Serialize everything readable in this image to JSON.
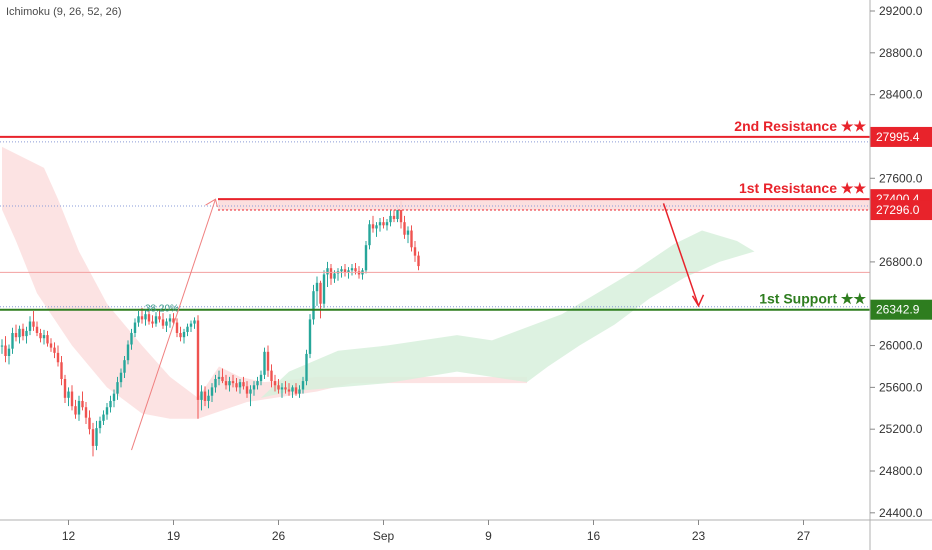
{
  "indicator": {
    "label": "Ichimoku (9, 26, 52, 26)"
  },
  "chart_data": {
    "type": "candlestick",
    "y_ticks": [
      "29200.0",
      "28800.0",
      "28400.0",
      "27600.0",
      "26800.0",
      "26000.0",
      "25600.0",
      "25200.0",
      "24800.0",
      "24400.0"
    ],
    "ylim": [
      24400,
      29350
    ],
    "x_ticks": [
      {
        "label": "12",
        "bar": 19
      },
      {
        "label": "19",
        "bar": 49
      },
      {
        "label": "26",
        "bar": 79
      },
      {
        "label": "Sep",
        "bar": 109
      },
      {
        "label": "9",
        "bar": 139
      },
      {
        "label": "16",
        "bar": 169
      },
      {
        "label": "23",
        "bar": 199
      },
      {
        "label": "27",
        "bar": 229
      }
    ],
    "levels": [
      {
        "label": "2nd Resistance ★★",
        "value": 27995.4,
        "tag": "27995.4",
        "color": "#e8232b"
      },
      {
        "label": "1st Resistance ★★",
        "value": 27400.4,
        "tag": "27400.4",
        "color": "#e8232b"
      },
      {
        "label": "",
        "value": 27296.0,
        "tag": "27296.0",
        "color": "#e8232b"
      },
      {
        "label": "1st Support ★★",
        "value": 26342.9,
        "tag": "26342.9",
        "color": "#2e7d1f"
      }
    ],
    "fib_label": "38.20%",
    "colors": {
      "up": "#26a69a",
      "down": "#ef5350",
      "resistance": "#e8232b",
      "support": "#2e7d1f",
      "cloud_bull": "#d7f0dc",
      "cloud_bear": "#fbdcdc"
    },
    "candles": [
      [
        25990,
        26060,
        25920,
        26000
      ],
      [
        26000,
        26090,
        25840,
        25900
      ],
      [
        25900,
        26010,
        25820,
        25970
      ],
      [
        25970,
        26170,
        25920,
        26120
      ],
      [
        26120,
        26200,
        26040,
        26080
      ],
      [
        26080,
        26190,
        26020,
        26160
      ],
      [
        26160,
        26210,
        26050,
        26090
      ],
      [
        26090,
        26180,
        26020,
        26140
      ],
      [
        26140,
        26280,
        26100,
        26230
      ],
      [
        26230,
        26330,
        26140,
        26180
      ],
      [
        26180,
        26230,
        26090,
        26120
      ],
      [
        26120,
        26160,
        26030,
        26070
      ],
      [
        26070,
        26150,
        26010,
        26100
      ],
      [
        26100,
        26140,
        25990,
        26020
      ],
      [
        26020,
        26070,
        25940,
        25980
      ],
      [
        25980,
        26030,
        25880,
        25930
      ],
      [
        25930,
        26000,
        25800,
        25840
      ],
      [
        25840,
        25900,
        25620,
        25680
      ],
      [
        25680,
        25720,
        25450,
        25500
      ],
      [
        25500,
        25600,
        25420,
        25560
      ],
      [
        25560,
        25620,
        25380,
        25420
      ],
      [
        25420,
        25480,
        25300,
        25340
      ],
      [
        25340,
        25520,
        25280,
        25470
      ],
      [
        25470,
        25560,
        25380,
        25410
      ],
      [
        25410,
        25460,
        25250,
        25310
      ],
      [
        25310,
        25380,
        25150,
        25200
      ],
      [
        25200,
        25260,
        24940,
        25040
      ],
      [
        25040,
        25280,
        25000,
        25210
      ],
      [
        25210,
        25320,
        25160,
        25280
      ],
      [
        25280,
        25380,
        25240,
        25340
      ],
      [
        25340,
        25450,
        25290,
        25410
      ],
      [
        25410,
        25520,
        25360,
        25470
      ],
      [
        25470,
        25580,
        25410,
        25540
      ],
      [
        25540,
        25700,
        25480,
        25650
      ],
      [
        25650,
        25780,
        25600,
        25740
      ],
      [
        25740,
        25900,
        25690,
        25860
      ],
      [
        25860,
        26050,
        25820,
        26010
      ],
      [
        26010,
        26160,
        25960,
        26120
      ],
      [
        26120,
        26260,
        26080,
        26220
      ],
      [
        26220,
        26330,
        26180,
        26280
      ],
      [
        26280,
        26360,
        26210,
        26250
      ],
      [
        26250,
        26340,
        26190,
        26300
      ],
      [
        26300,
        26350,
        26200,
        26230
      ],
      [
        26230,
        26290,
        26170,
        26210
      ],
      [
        26210,
        26320,
        26180,
        26280
      ],
      [
        26280,
        26340,
        26220,
        26250
      ],
      [
        26250,
        26310,
        26160,
        26190
      ],
      [
        26190,
        26260,
        26130,
        26230
      ],
      [
        26230,
        26300,
        26170,
        26260
      ],
      [
        26260,
        26310,
        26200,
        26220
      ],
      [
        26220,
        26260,
        26080,
        26120
      ],
      [
        26120,
        26180,
        26040,
        26080
      ],
      [
        26080,
        26160,
        26020,
        26130
      ],
      [
        26130,
        26210,
        26090,
        26180
      ],
      [
        26180,
        26240,
        26130,
        26210
      ],
      [
        26210,
        26270,
        26160,
        26240
      ],
      [
        26240,
        26290,
        25300,
        25480
      ],
      [
        25480,
        25620,
        25380,
        25560
      ],
      [
        25560,
        25610,
        25420,
        25470
      ],
      [
        25470,
        25580,
        25400,
        25520
      ],
      [
        25520,
        25640,
        25460,
        25600
      ],
      [
        25600,
        25720,
        25550,
        25680
      ],
      [
        25680,
        25760,
        25620,
        25700
      ],
      [
        25700,
        25780,
        25640,
        25660
      ],
      [
        25660,
        25720,
        25580,
        25620
      ],
      [
        25620,
        25700,
        25560,
        25660
      ],
      [
        25660,
        25720,
        25600,
        25640
      ],
      [
        25640,
        25690,
        25560,
        25600
      ],
      [
        25600,
        25680,
        25540,
        25650
      ],
      [
        25650,
        25700,
        25580,
        25610
      ],
      [
        25610,
        25660,
        25500,
        25540
      ],
      [
        25540,
        25620,
        25420,
        25580
      ],
      [
        25580,
        25660,
        25520,
        25620
      ],
      [
        25620,
        25700,
        25580,
        25660
      ],
      [
        25660,
        25760,
        25620,
        25720
      ],
      [
        25720,
        25980,
        25680,
        25940
      ],
      [
        25940,
        26000,
        25700,
        25760
      ],
      [
        25760,
        25820,
        25600,
        25660
      ],
      [
        25660,
        25720,
        25560,
        25620
      ],
      [
        25620,
        25680,
        25540,
        25580
      ],
      [
        25580,
        25640,
        25500,
        25600
      ],
      [
        25600,
        25660,
        25540,
        25580
      ],
      [
        25580,
        25640,
        25520,
        25560
      ],
      [
        25560,
        25620,
        25500,
        25600
      ],
      [
        25600,
        25640,
        25520,
        25540
      ],
      [
        25540,
        25620,
        25500,
        25580
      ],
      [
        25580,
        25700,
        25540,
        25660
      ],
      [
        25660,
        25960,
        25620,
        25920
      ],
      [
        25920,
        26300,
        25880,
        26250
      ],
      [
        26250,
        26580,
        26200,
        26520
      ],
      [
        26520,
        26660,
        26380,
        26600
      ],
      [
        26600,
        26620,
        26260,
        26400
      ],
      [
        26400,
        26720,
        26360,
        26680
      ],
      [
        26680,
        26800,
        26560,
        26740
      ],
      [
        26740,
        26780,
        26580,
        26640
      ],
      [
        26640,
        26720,
        26600,
        26690
      ],
      [
        26690,
        26740,
        26620,
        26710
      ],
      [
        26710,
        26760,
        26650,
        26730
      ],
      [
        26730,
        26780,
        26660,
        26700
      ],
      [
        26700,
        26750,
        26640,
        26720
      ],
      [
        26720,
        26780,
        26670,
        26740
      ],
      [
        26740,
        26790,
        26680,
        26710
      ],
      [
        26710,
        26760,
        26640,
        26680
      ],
      [
        26680,
        26740,
        26630,
        26720
      ],
      [
        26720,
        27000,
        26690,
        26960
      ],
      [
        26960,
        27200,
        26920,
        27160
      ],
      [
        27160,
        27240,
        27080,
        27120
      ],
      [
        27120,
        27180,
        27040,
        27150
      ],
      [
        27150,
        27220,
        27090,
        27180
      ],
      [
        27180,
        27230,
        27120,
        27150
      ],
      [
        27150,
        27210,
        27100,
        27180
      ],
      [
        27180,
        27290,
        27140,
        27240
      ],
      [
        27240,
        27300,
        27180,
        27210
      ],
      [
        27210,
        27340,
        27180,
        27300
      ],
      [
        27300,
        27380,
        27120,
        27180
      ],
      [
        27180,
        27240,
        27020,
        27060
      ],
      [
        27060,
        27140,
        26980,
        27100
      ],
      [
        27100,
        27150,
        26900,
        26940
      ],
      [
        26940,
        27000,
        26800,
        26860
      ],
      [
        26860,
        26900,
        26720,
        26760
      ]
    ]
  }
}
